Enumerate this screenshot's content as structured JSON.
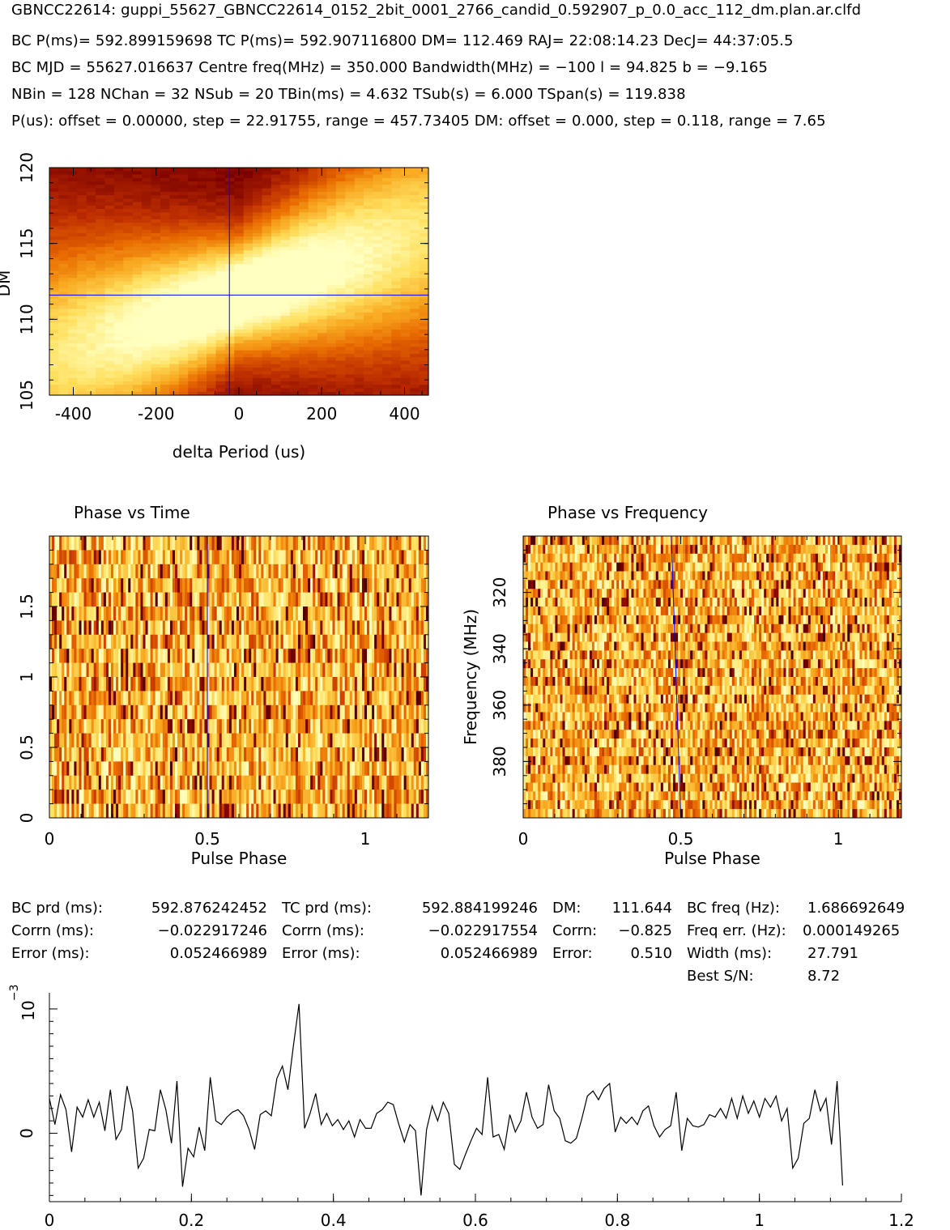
{
  "header": {
    "title": "GBNCC22614: guppi_55627_GBNCC22614_0152_2bit_0001_2766_candid_0.592907_p_0.0_acc_112_dm.plan.ar.clfd",
    "line1": "BC P(ms)= 592.899159698 TC P(ms)= 592.907116800 DM= 112.469 RAJ= 22:08:14.23 DecJ= 44:37:05.5",
    "line2": "BC MJD = 55627.016637 Centre freq(MHz) = 350.000 Bandwidth(MHz) = −100 l = 94.825 b = −9.165",
    "line3": "NBin = 128 NChan = 32 NSub = 20 TBin(ms) = 4.632 TSub(s) = 6.000 TSpan(s) = 119.838",
    "line4": "P(us): offset = 0.00000, step = 22.91755, range = 457.73405 DM: offset = 0.000, step = 0.118, range = 7.65"
  },
  "stats": {
    "bc_prd_label": "BC prd (ms):",
    "bc_prd_value": "592.876242452",
    "corrn1_label": "Corrn (ms):",
    "corrn1_value": "−0.022917246",
    "error1_label": "Error (ms):",
    "error1_value": "0.052466989",
    "tc_prd_label": "TC prd (ms):",
    "tc_prd_value": "592.884199246",
    "corrn2_label": "Corrn (ms):",
    "corrn2_value": "−0.022917554",
    "error2_label": "Error (ms):",
    "error2_value": "0.052466989",
    "dm_label": "DM:",
    "dm_value": "111.644",
    "dm_corrn_label": "Corrn:",
    "dm_corrn_value": "−0.825",
    "dm_error_label": "Error:",
    "dm_error_value": "0.510",
    "bc_freq_label": "BC freq (Hz):",
    "bc_freq_value": "1.686692649",
    "freq_err_label": "Freq err. (Hz):",
    "freq_err_value": "0.000149265",
    "width_label": "Width (ms):",
    "width_value": "27.791",
    "sn_label": "Best S/N:",
    "sn_value": "8.72"
  },
  "colors": {
    "colormap": [
      "#2b0000",
      "#7a0000",
      "#c03000",
      "#e86a00",
      "#f8a820",
      "#ffe060",
      "#ffffc0"
    ],
    "line": "#000000",
    "marker": "#0000ff"
  },
  "chart_data": [
    {
      "type": "heatmap",
      "name": "dm-vs-period",
      "xlabel": "delta Period (us)",
      "ylabel": "DM",
      "xlim": [
        -457.73,
        457.73
      ],
      "ylim": [
        105,
        120
      ],
      "xticks": [
        -400,
        -200,
        0,
        200,
        400
      ],
      "yticks": [
        105,
        110,
        115,
        120
      ],
      "marker_x": -23,
      "marker_y": 111.6,
      "peak_dm_center": 111.6,
      "peak_dm_slope_per_100us": 0.9
    },
    {
      "type": "heatmap",
      "name": "phase-vs-time",
      "title": "Phase vs Time",
      "xlabel": "Pulse Phase",
      "xlim": [
        0,
        1.2
      ],
      "ylim": [
        0,
        2
      ],
      "xticks": [
        0,
        0.5,
        1
      ],
      "yticks": [
        0,
        0.5,
        1,
        1.5
      ],
      "rows": 20,
      "cols": 154,
      "marker_phase": 0.5
    },
    {
      "type": "heatmap",
      "name": "phase-vs-frequency",
      "title": "Phase vs Frequency",
      "xlabel": "Pulse Phase",
      "ylabel": "Frequency (MHz)",
      "xlim": [
        0,
        1.2
      ],
      "ylim": [
        400,
        300
      ],
      "xticks": [
        0,
        0.5,
        1
      ],
      "yticks": [
        320,
        340,
        360,
        380
      ],
      "rows": 32,
      "cols": 154,
      "marker_phase_top": 0.47,
      "marker_phase_bottom": 0.5
    },
    {
      "type": "line",
      "name": "pulse-profile",
      "ylabel": "10",
      "ylabel_exp": "−3",
      "xlim": [
        0,
        1.2
      ],
      "ylim": [
        -0.00055,
        0.00113
      ],
      "xticks": [
        0,
        0.2,
        0.4,
        0.6,
        0.8,
        1,
        1.2
      ],
      "yticks": [
        0,
        0.001
      ],
      "ytick_labels": [
        "0",
        ""
      ],
      "x_step": 0.0078125,
      "values": [
        0.00028,
        7e-05,
        0.00031,
        0.00019,
        -0.00015,
        0.00021,
        0.00013,
        0.00027,
        0.00013,
        0.00025,
        2e-05,
        0.00035,
        -5e-05,
        3e-05,
        0.00038,
        0.00018,
        -0.00028,
        -0.0002,
        3e-05,
        2e-05,
        0.00035,
        0.00019,
        -8e-05,
        0.00042,
        -0.00043,
        -0.00012,
        -0.00019,
        5e-05,
        -0.00014,
        0.00045,
        0.0001,
        7e-05,
        0.00013,
        0.00017,
        0.00019,
        0.00014,
        3e-05,
        -0.00013,
        0.00015,
        0.00018,
        0.00014,
        0.00044,
        0.00054,
        0.00035,
        0.00071,
        0.00104,
        4e-05,
        0.00016,
        0.00032,
        7e-05,
        0.00016,
        6e-05,
        0.00011,
        3e-05,
        0.0001,
        -3e-05,
        0.00011,
        4e-05,
        4e-05,
        0.00016,
        0.00019,
        0.00025,
        0.00023,
        7e-05,
        -7e-05,
        7e-05,
        2e-05,
        -0.0005,
        3e-05,
        0.00022,
        0.0001,
        0.00025,
        0.00016,
        -0.00025,
        -0.00029,
        -0.00017,
        -6e-05,
        4e-05,
        -1e-05,
        0.00045,
        -3e-05,
        -1e-05,
        -0.00013,
        0.00015,
        1e-05,
        0.0001,
        0.00033,
        0.00013,
        4e-05,
        7e-05,
        0.00039,
        0.00018,
        0.00012,
        -6e-05,
        -8e-05,
        -4e-05,
        0.00012,
        0.0003,
        0.00034,
        0.00027,
        0.00036,
        0.0004,
        1e-05,
        0.00013,
        8e-05,
        0.00013,
        7e-05,
        0.00018,
        0.00022,
        6e-05,
        -3e-05,
        3e-05,
        6e-05,
        0.00033,
        -0.00014,
        0.00012,
        6e-05,
        5e-05,
        7e-05,
        0.00015,
        0.00013,
        0.0002,
        0.00012,
        0.00028,
        0.00012,
        0.0003,
        0.00016,
        0.00026,
        0.00013,
        0.00028,
        0.00021,
        0.0003,
        0.0001,
        0.0002,
        -0.00028,
        -0.0002,
        8e-05,
        0.00012,
        0.00035,
        0.00018,
        0.00028,
        -9e-05,
        0.00042,
        -0.00042
      ]
    }
  ]
}
